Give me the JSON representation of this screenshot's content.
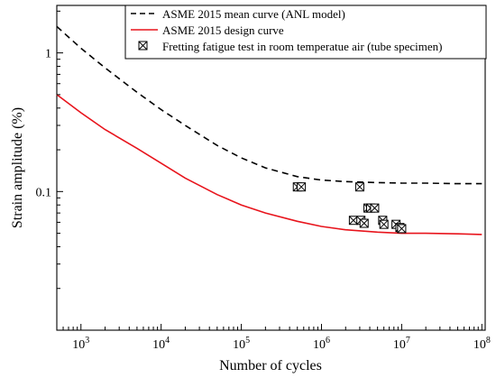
{
  "chart_data": {
    "type": "line",
    "title": "",
    "xlabel": "Number of cycles",
    "ylabel": "Strain amplitude (%)",
    "xscale": "log",
    "yscale": "log",
    "xlim": [
      500,
      110000000
    ],
    "ylim": [
      0.01,
      2.2
    ],
    "grid": false,
    "legend_position": "top-right",
    "x_ticks": [
      {
        "value": 1000,
        "base": "10",
        "exp": "3"
      },
      {
        "value": 10000,
        "base": "10",
        "exp": "4"
      },
      {
        "value": 100000,
        "base": "10",
        "exp": "5"
      },
      {
        "value": 1000000,
        "base": "10",
        "exp": "6"
      },
      {
        "value": 10000000,
        "base": "10",
        "exp": "7"
      },
      {
        "value": 100000000,
        "base": "10",
        "exp": "8"
      }
    ],
    "y_ticks": [
      {
        "value": 1,
        "label": "1"
      },
      {
        "value": 0.1,
        "label": "0.1"
      }
    ],
    "series": [
      {
        "name": "ASME 2015 mean curve (ANL model)",
        "style": "dashed",
        "color": "#000000",
        "x": [
          500,
          1000,
          2000,
          5000,
          10000,
          20000,
          50000,
          100000,
          200000,
          500000,
          1000000,
          2000000,
          5000000,
          10000000,
          20000000,
          50000000,
          100000000
        ],
        "y": [
          1.55,
          1.08,
          0.78,
          0.52,
          0.39,
          0.3,
          0.215,
          0.175,
          0.148,
          0.128,
          0.121,
          0.118,
          0.116,
          0.115,
          0.115,
          0.114,
          0.114
        ]
      },
      {
        "name": "ASME 2015 design curve",
        "style": "solid",
        "color": "#e8141c",
        "x": [
          500,
          1000,
          2000,
          5000,
          10000,
          20000,
          50000,
          100000,
          200000,
          500000,
          1000000,
          2000000,
          5000000,
          10000000,
          20000000,
          50000000,
          100000000
        ],
        "y": [
          0.5,
          0.37,
          0.28,
          0.205,
          0.16,
          0.125,
          0.095,
          0.08,
          0.07,
          0.061,
          0.056,
          0.053,
          0.051,
          0.05,
          0.05,
          0.0495,
          0.049
        ]
      },
      {
        "name": "Fretting fatigue test in room temperatue air (tube specimen)",
        "style": "marker",
        "marker": "boxed-x",
        "color": "#000000",
        "points": [
          {
            "x": 500000,
            "y": 0.108
          },
          {
            "x": 560000,
            "y": 0.108
          },
          {
            "x": 3000000,
            "y": 0.108
          },
          {
            "x": 3800000,
            "y": 0.076
          },
          {
            "x": 4100000,
            "y": 0.076
          },
          {
            "x": 4600000,
            "y": 0.076
          },
          {
            "x": 2500000,
            "y": 0.062
          },
          {
            "x": 3100000,
            "y": 0.062
          },
          {
            "x": 5800000,
            "y": 0.062
          },
          {
            "x": 3400000,
            "y": 0.059
          },
          {
            "x": 6000000,
            "y": 0.058
          },
          {
            "x": 8500000,
            "y": 0.058
          },
          {
            "x": 9500000,
            "y": 0.055
          },
          {
            "x": 10000000,
            "y": 0.054
          }
        ]
      }
    ]
  }
}
